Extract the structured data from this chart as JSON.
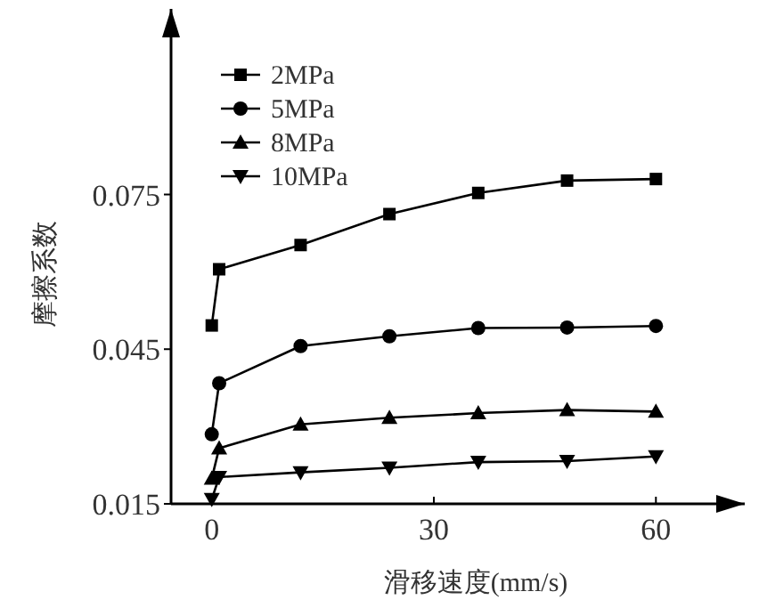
{
  "chart_data": {
    "type": "line",
    "xlabel": "滑移速度(mm/s)",
    "ylabel": "摩擦系数",
    "xlim": [
      -5.5,
      72
    ],
    "ylim": [
      0.015,
      0.111
    ],
    "xticks": [
      0,
      30,
      60
    ],
    "yticks": [
      0.015,
      0.045,
      0.075
    ],
    "grid": false,
    "legend": "top left",
    "series": [
      {
        "name": "2MPa",
        "color": "#000000",
        "marker": "square",
        "x": [
          0,
          1,
          12,
          24,
          36,
          48,
          60
        ],
        "values": [
          0.0496,
          0.0605,
          0.0652,
          0.0712,
          0.0753,
          0.0777,
          0.078
        ]
      },
      {
        "name": "5MPa",
        "color": "#000000",
        "marker": "circle",
        "x": [
          0,
          1,
          12,
          24,
          36,
          48,
          60
        ],
        "values": [
          0.0285,
          0.0384,
          0.0456,
          0.0475,
          0.0491,
          0.0492,
          0.0495
        ]
      },
      {
        "name": "8MPa",
        "color": "#000000",
        "marker": "triangle",
        "x": [
          0,
          1,
          12,
          24,
          36,
          48,
          60
        ],
        "values": [
          0.0199,
          0.0258,
          0.0304,
          0.0317,
          0.0326,
          0.0332,
          0.0329
        ]
      },
      {
        "name": "10MPa",
        "color": "#000000",
        "marker": "triangle-down",
        "x": [
          0,
          1,
          12,
          24,
          36,
          48,
          60
        ],
        "values": [
          0.0159,
          0.0202,
          0.0211,
          0.022,
          0.0231,
          0.0233,
          0.0242
        ]
      }
    ]
  }
}
